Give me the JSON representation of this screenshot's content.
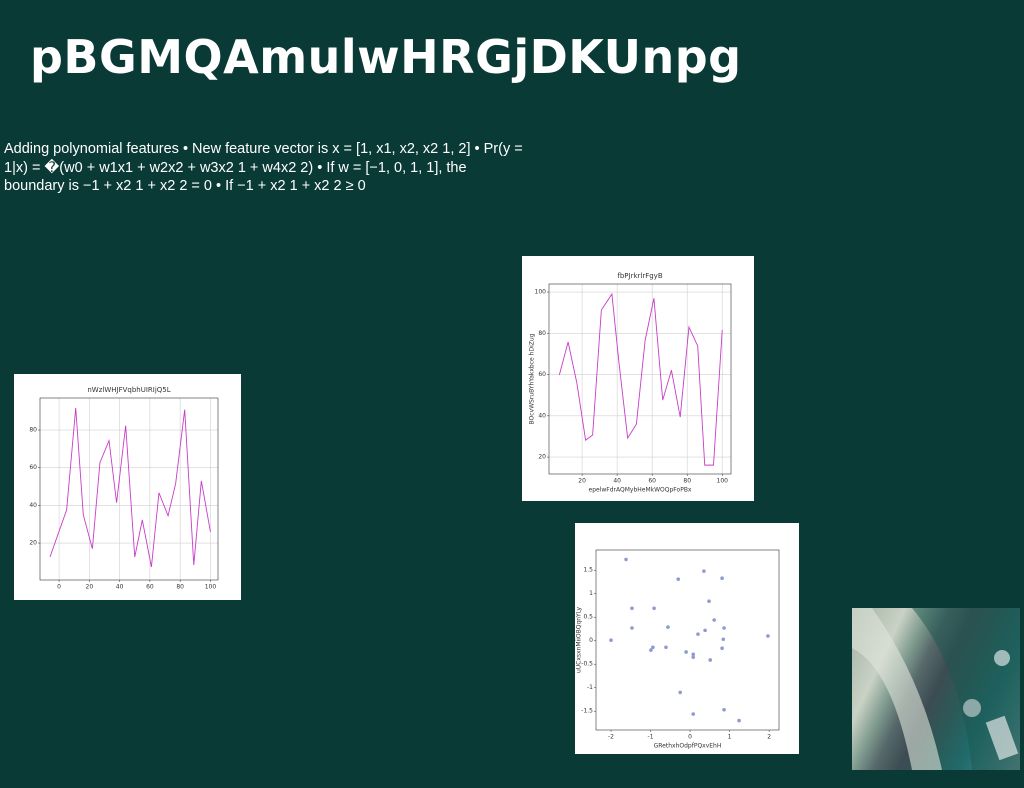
{
  "header": {
    "title": "pBGMQAmulwHRGjDKUnpg"
  },
  "body": {
    "text": "Adding polynomial features • New feature vector is x = [1, x1, x2, x2 1, 2] • Pr(y = 1|x) = �(w0 + w1x1 + w2x2 + w3x2 1 + w4x2 2) • If w = [−1, 0, 1, 1], the boundary is −1 + x2 1 + x2 2 = 0 • If −1 + x2 1 + x2 2 ≥ 0"
  },
  "chart_data": [
    {
      "type": "line",
      "title": "nWzlWHJFVqbhUIRIjQ5L",
      "x": [
        -6,
        5,
        11,
        16,
        22,
        27,
        33,
        38,
        44,
        50,
        55,
        61,
        66,
        72,
        77,
        83,
        89,
        94,
        100
      ],
      "series": [
        {
          "color": "#c83cc8",
          "values": [
            12.6,
            37.6,
            91.7,
            35,
            17,
            62.7,
            74.4,
            41.4,
            82.3,
            12.6,
            32.3,
            7.3,
            46.7,
            34.5,
            51.5,
            90.8,
            8.4,
            53,
            26
          ]
        }
      ],
      "xlim": [
        -12.6,
        105
      ],
      "ylim": [
        0.4,
        97
      ],
      "xticks": [
        0,
        20,
        40,
        60,
        80,
        100
      ],
      "yticks": [
        20,
        40,
        60,
        80
      ],
      "grid": true
    },
    {
      "type": "line",
      "title": "fbPJrkrlrFgyB",
      "x_label": "epelwFdrAQMybHeMkWOQpFoPBx",
      "y_label": "BOcvWSruBYhYakxbce hDiZug",
      "x": [
        7,
        12,
        17,
        22,
        26,
        31,
        37,
        41,
        46,
        51,
        56,
        61,
        66,
        71,
        76,
        81,
        86,
        90,
        95,
        100
      ],
      "series": [
        {
          "color": "#c83cc8",
          "values": [
            59.8,
            75.8,
            55.9,
            28.2,
            30.7,
            91.3,
            99,
            66.1,
            29.2,
            36,
            76.7,
            97,
            47.6,
            62.1,
            39.4,
            83,
            73.8,
            16.1,
            16.1,
            81.6
          ]
        }
      ],
      "xlim": [
        1.1,
        105
      ],
      "ylim": [
        11.8,
        103.9
      ],
      "xticks": [
        20,
        40,
        60,
        80,
        100
      ],
      "yticks": [
        20,
        40,
        60,
        80,
        100
      ],
      "grid": true
    },
    {
      "type": "scatter",
      "x_label": "GRethxhOdpfPQxvEhH",
      "y_label": "uUCxsxnMiiOBQqnYLy",
      "x": [
        -1.62,
        -2.0,
        -1.47,
        -1.47,
        -0.91,
        -0.94,
        -0.99,
        -0.56,
        -0.61,
        -0.3,
        -0.1,
        -0.25,
        0.08,
        0.08,
        0.08,
        0.2,
        0.35,
        0.38,
        0.48,
        0.51,
        0.61,
        0.81,
        0.86,
        0.81,
        0.84,
        0.86,
        1.24,
        1.97
      ],
      "series": [
        {
          "color": "#8e9bd0",
          "values": [
            1.73,
            0.01,
            0.69,
            0.27,
            0.69,
            -0.14,
            -0.2,
            0.29,
            -0.14,
            1.31,
            -0.24,
            -1.1,
            -0.35,
            -0.29,
            -1.56,
            0.14,
            1.48,
            0.22,
            0.84,
            -0.41,
            0.44,
            1.33,
            0.27,
            -0.16,
            0.03,
            -1.47,
            -1.7,
            0.1
          ]
        }
      ],
      "xlim": [
        -2.38,
        2.25
      ],
      "ylim": [
        -1.9,
        1.93
      ],
      "xticks": [
        -2,
        -1,
        0,
        1,
        2
      ],
      "yticks": [
        -1.5,
        -1.0,
        -0.5,
        0.0,
        0.5,
        1.0,
        1.5
      ],
      "grid": false
    }
  ]
}
